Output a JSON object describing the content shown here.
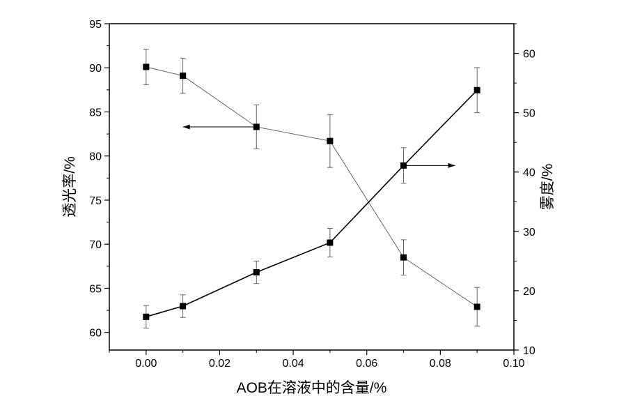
{
  "chart_data": {
    "type": "line",
    "xlabel": "AOB在溶液中的含量/%",
    "ylabel_left": "透光率/%",
    "ylabel_right": "雾度/%",
    "xlim": [
      -0.01,
      0.1
    ],
    "ylim_left": [
      58,
      95
    ],
    "ylim_right": [
      10,
      65
    ],
    "x_ticks": [
      0.0,
      0.02,
      0.04,
      0.06,
      0.08,
      0.1
    ],
    "x_tick_labels": [
      "0.00",
      "0.02",
      "0.04",
      "0.06",
      "0.08",
      "0.10"
    ],
    "y_left_ticks": [
      60,
      65,
      70,
      75,
      80,
      85,
      90,
      95
    ],
    "y_left_tick_labels": [
      "60",
      "65",
      "70",
      "75",
      "80",
      "85",
      "90",
      "95"
    ],
    "y_right_ticks": [
      10,
      20,
      30,
      40,
      50,
      60
    ],
    "y_right_tick_labels": [
      "10",
      "20",
      "30",
      "40",
      "50",
      "60"
    ],
    "grid": false,
    "legend": "none",
    "series": [
      {
        "axis": "left",
        "x": [
          0.0,
          0.01,
          0.03,
          0.05,
          0.07,
          0.09
        ],
        "y": [
          90.1,
          89.1,
          83.3,
          81.7,
          68.5,
          62.9
        ],
        "err": [
          2.0,
          2.0,
          2.5,
          3.0,
          2.0,
          2.2
        ],
        "line_color": "#555555",
        "line_width": "thin"
      },
      {
        "axis": "right",
        "x": [
          0.0,
          0.01,
          0.03,
          0.05,
          0.07,
          0.09
        ],
        "y": [
          15.6,
          17.4,
          23.1,
          28.1,
          41.1,
          53.8
        ],
        "err": [
          1.9,
          1.9,
          1.9,
          2.4,
          3.0,
          3.8
        ],
        "line_color": "#000000",
        "line_width": "thick"
      }
    ],
    "annotations": [
      {
        "type": "arrow",
        "direction": "left",
        "axis": "left",
        "x_from": 0.03,
        "x_to": 0.01,
        "y": 83.3
      },
      {
        "type": "arrow",
        "direction": "right",
        "axis": "right",
        "x_from": 0.07,
        "x_to": 0.084,
        "y": 41.1
      }
    ]
  }
}
